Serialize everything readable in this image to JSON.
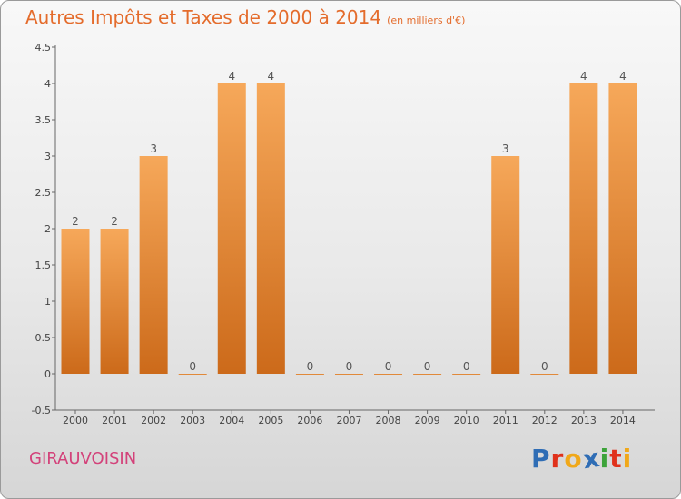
{
  "header": {
    "title": "Autres Impôts et Taxes de 2000 à 2014",
    "unit": "(en milliers d'€)"
  },
  "footer": {
    "place": "GIRAUVOISIN",
    "logo_text": "Proxiti",
    "logo_letters": [
      {
        "ch": "P",
        "color": "#2f6db5"
      },
      {
        "ch": "r",
        "color": "#e0311b"
      },
      {
        "ch": "o",
        "color": "#f0a81a"
      },
      {
        "ch": "x",
        "color": "#2f6db5"
      },
      {
        "ch": "i",
        "color": "#3da33a"
      },
      {
        "ch": "t",
        "color": "#e0311b"
      },
      {
        "ch": "i",
        "color": "#f0a81a"
      }
    ]
  },
  "colors": {
    "bar_light": "#f6a85a",
    "bar_dark": "#cc6a1a",
    "title": "#e46c2c",
    "place": "#d3427a"
  },
  "chart_data": {
    "type": "bar",
    "title": "Autres Impôts et Taxes de 2000 à 2014",
    "subtitle": "(en milliers d'€)",
    "xlabel": "",
    "ylabel": "",
    "categories": [
      "2000",
      "2001",
      "2002",
      "2003",
      "2004",
      "2005",
      "2006",
      "2007",
      "2008",
      "2009",
      "2010",
      "2011",
      "2012",
      "2013",
      "2014"
    ],
    "values": [
      2,
      2,
      3,
      0,
      4,
      4,
      0,
      0,
      0,
      0,
      0,
      3,
      0,
      4,
      4
    ],
    "data_labels": [
      "2",
      "2",
      "3",
      "0",
      "4",
      "4",
      "0",
      "0",
      "0",
      "0",
      "0",
      "3",
      "0",
      "4",
      "4"
    ],
    "ylim": [
      -0.5,
      4.5
    ],
    "yticks": [
      -0.5,
      0,
      0.5,
      1,
      1.5,
      2,
      2.5,
      3,
      3.5,
      4,
      4.5
    ],
    "ytick_labels": [
      "-0.5",
      "0",
      "0.5",
      "1",
      "1.5",
      "2",
      "2.5",
      "3",
      "3.5",
      "4",
      "4.5"
    ],
    "grid": false
  }
}
